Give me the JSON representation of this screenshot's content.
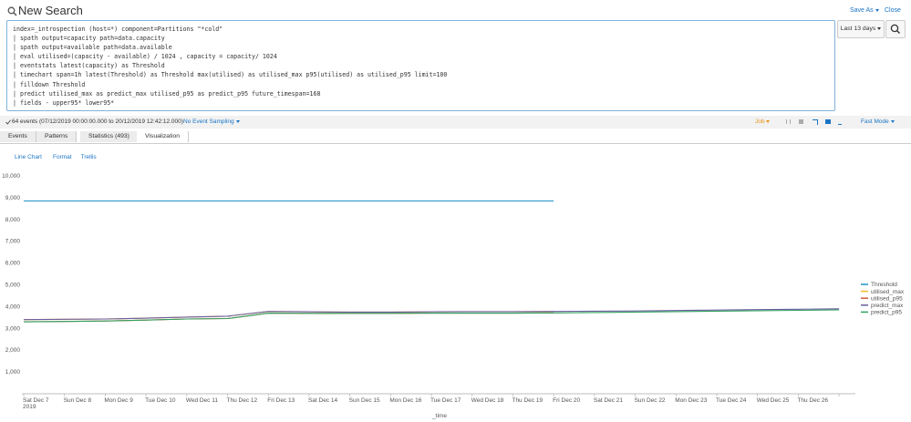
{
  "header": {
    "title": "New Search",
    "save_as": "Save As",
    "close": "Close"
  },
  "search": {
    "query_lines": [
      "index=_introspection (host=*) component=Partitions \"*cold\"",
      "| spath output=capacity path=data.capacity",
      "| spath output=available path=data.available",
      "| eval utilised=(capacity - available) / 1024 , capacity = capacity/ 1024",
      "| eventstats latest(capacity) as Threshold",
      "| timechart span=1h latest(Threshold) as Threshold max(utilised) as utilised_max p95(utilised) as utilised_p95 limit=100",
      "| filldown Threshold",
      "| predict utilised_max as predict_max utilised_p95 as predict_p95 future_timespan=168",
      "| fields - upper95* lower95*"
    ],
    "time_range": "Last 13 days"
  },
  "status": {
    "events": "64 events (07/12/2019 00:00:00.000 to 20/12/2019 12:42:12.000)",
    "sampling": "No Event Sampling",
    "job": "Job",
    "mode": "Fast Mode"
  },
  "tabs": [
    "Events",
    "Patterns",
    "Statistics (493)",
    "Visualization"
  ],
  "viz_toolbar": [
    "Line Chart",
    "Format",
    "Trellis"
  ],
  "chart_data": {
    "type": "line",
    "x_label": "_time",
    "x_sublabel": "2019",
    "categories": [
      "Sat Dec 7",
      "Sun Dec 8",
      "Mon Dec 9",
      "Tue Dec 10",
      "Wed Dec 11",
      "Thu Dec 12",
      "Fri Dec 13",
      "Sat Dec 14",
      "Sun Dec 15",
      "Mon Dec 16",
      "Tue Dec 17",
      "Wed Dec 18",
      "Thu Dec 19",
      "Fri Dec 20",
      "Sat Dec 21",
      "Sun Dec 22",
      "Mon Dec 23",
      "Tue Dec 24",
      "Wed Dec 25",
      "Thu Dec 26",
      null
    ],
    "ylim": [
      0,
      10000
    ],
    "yticks": [
      {
        "value": 1000,
        "label": "1,000"
      },
      {
        "value": 2000,
        "label": "2,000"
      },
      {
        "value": 3000,
        "label": "3,000"
      },
      {
        "value": 4000,
        "label": "4,000"
      },
      {
        "value": 5000,
        "label": "5,000"
      },
      {
        "value": 6000,
        "label": "6,000"
      },
      {
        "value": 7000,
        "label": "7,000"
      },
      {
        "value": 8000,
        "label": "8,000"
      },
      {
        "value": 9000,
        "label": "9,000"
      },
      {
        "value": 10000,
        "label": "10,000"
      }
    ],
    "legend": "right",
    "series": [
      {
        "name": "Threshold",
        "color": "#1e93c6",
        "values": [
          8850,
          8850,
          8850,
          8850,
          8850,
          8850,
          8850,
          8850,
          8850,
          8850,
          8850,
          8850,
          8850,
          8850,
          null,
          null,
          null,
          null,
          null,
          null,
          null
        ]
      },
      {
        "name": "utilised_max",
        "color": "#f2b827",
        "values": [
          3400,
          3420,
          3430,
          3470,
          3520,
          3560,
          3780,
          3760,
          3750,
          3750,
          3760,
          3770,
          3770,
          3780,
          null,
          null,
          null,
          null,
          null,
          null,
          null
        ]
      },
      {
        "name": "utilised_p95",
        "color": "#d6563c",
        "values": [
          3300,
          3320,
          3340,
          3380,
          3430,
          3450,
          3700,
          3690,
          3690,
          3690,
          3700,
          3700,
          3700,
          3710,
          null,
          null,
          null,
          null,
          null,
          null,
          null
        ]
      },
      {
        "name": "predict_max",
        "color": "#6a5c9e",
        "values": [
          3400,
          3420,
          3430,
          3470,
          3520,
          3560,
          3780,
          3760,
          3750,
          3750,
          3760,
          3770,
          3770,
          3780,
          3790,
          3800,
          3820,
          3840,
          3860,
          3880,
          3900
        ]
      },
      {
        "name": "predict_p95",
        "color": "#31a35f",
        "values": [
          3300,
          3320,
          3340,
          3380,
          3430,
          3450,
          3700,
          3690,
          3690,
          3690,
          3700,
          3700,
          3700,
          3710,
          3730,
          3750,
          3770,
          3790,
          3810,
          3830,
          3850
        ]
      }
    ]
  }
}
